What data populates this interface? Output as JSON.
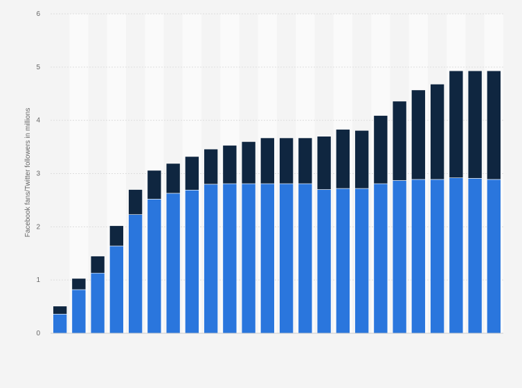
{
  "chart_data": {
    "type": "bar",
    "stacked": true,
    "title": "",
    "xlabel": "",
    "ylabel": "Facebook fans/Twitter followers in millions",
    "ylim": [
      0,
      6
    ],
    "yticks": [
      0,
      1,
      2,
      3,
      4,
      5,
      6
    ],
    "grid": true,
    "categories": [
      "",
      "",
      "",
      "",
      "",
      "",
      "",
      "",
      "",
      "",
      "",
      "",
      "",
      "",
      "",
      "",
      "",
      "",
      "",
      "",
      "",
      "",
      "",
      ""
    ],
    "series": [
      {
        "color": "#2a76dd",
        "values": [
          0.36,
          0.82,
          1.13,
          1.64,
          2.23,
          2.52,
          2.63,
          2.69,
          2.8,
          2.81,
          2.81,
          2.81,
          2.81,
          2.81,
          2.7,
          2.72,
          2.72,
          2.81,
          2.87,
          2.89,
          2.89,
          2.92,
          2.91,
          2.89
        ]
      },
      {
        "color": "#0f2640",
        "values": [
          0.15,
          0.21,
          0.32,
          0.38,
          0.47,
          0.54,
          0.56,
          0.63,
          0.66,
          0.72,
          0.79,
          0.86,
          0.86,
          0.86,
          1.0,
          1.11,
          1.09,
          1.28,
          1.49,
          1.68,
          1.79,
          2.01,
          2.02,
          2.04
        ]
      }
    ]
  }
}
